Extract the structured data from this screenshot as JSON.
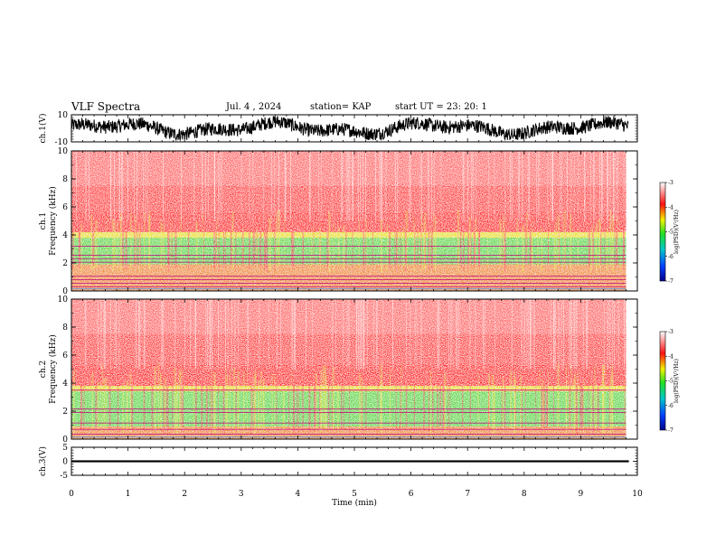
{
  "header": {
    "title": "VLF Spectra",
    "date": "Jul. 4 , 2024",
    "station": "station= KAP",
    "start_ut": "start UT =  23: 20: 1"
  },
  "chart_data": [
    {
      "type": "line",
      "panel": "ch1-waveform",
      "ylabel": "ch.1(V)",
      "ylim": [
        -10,
        10
      ],
      "yticks": [
        "10",
        "-10"
      ],
      "xlim": [
        0,
        10
      ],
      "series": [
        {
          "values_range": [
            -8,
            8
          ]
        }
      ]
    },
    {
      "type": "heatmap",
      "panel": "ch1-spectrogram",
      "ylabel": "ch.1\nFrequency (kHz)",
      "ylim": [
        0,
        10
      ],
      "yticks": [
        "0",
        "2",
        "4",
        "6",
        "8",
        "10"
      ],
      "xlim": [
        0,
        10
      ],
      "duration_min": 9.8,
      "colorbar": {
        "label": "log(PSD)(V²/Hz)",
        "range": [
          -7,
          -3
        ],
        "ticks": [
          "-3",
          "-4",
          "-5",
          "-6",
          "-7"
        ]
      },
      "bands_khz": {
        "green_low": 1.9,
        "green_high": 3.8,
        "red_edge": 4.6
      },
      "lines_khz": [
        0.3,
        0.55,
        0.8,
        1.05,
        2.05,
        2.3,
        2.55,
        3.2
      ]
    },
    {
      "type": "heatmap",
      "panel": "ch2-spectrogram",
      "ylabel": "ch.2\nFrequency (kHz)",
      "ylim": [
        0,
        10
      ],
      "yticks": [
        "0",
        "2",
        "4",
        "6",
        "8",
        "10"
      ],
      "xlim": [
        0,
        10
      ],
      "duration_min": 9.8,
      "colorbar": {
        "label": "log(PSD)(V²/Hz)",
        "range": [
          -7,
          -3
        ],
        "ticks": [
          "-3",
          "-4",
          "-5",
          "-6",
          "-7"
        ]
      },
      "bands_khz": {
        "green_low": 0.9,
        "green_high": 3.4,
        "red_edge": 4.3
      },
      "lines_khz": [
        0.35,
        0.7,
        1.15,
        1.9,
        2.15,
        3.5
      ]
    },
    {
      "type": "line",
      "panel": "ch3-waveform",
      "ylabel": "ch.3(V)",
      "ylim": [
        -5,
        5
      ],
      "yticks": [
        "5",
        "0",
        "-5"
      ],
      "xlim": [
        0,
        10
      ],
      "series": [
        {
          "values_range": [
            -0.4,
            0.4
          ]
        }
      ]
    }
  ],
  "xaxis": {
    "label": "Time (min)",
    "ticks": [
      "0",
      "1",
      "2",
      "3",
      "4",
      "5",
      "6",
      "7",
      "8",
      "9",
      "10"
    ],
    "lim": [
      0,
      10
    ]
  },
  "colors": {
    "low": "#00008b",
    "mid_blue": "#0040ff",
    "cyan": "#00c8c8",
    "green": "#22e022",
    "yellow": "#f0f000",
    "red": "#ff1010",
    "high": "#ffffff"
  }
}
